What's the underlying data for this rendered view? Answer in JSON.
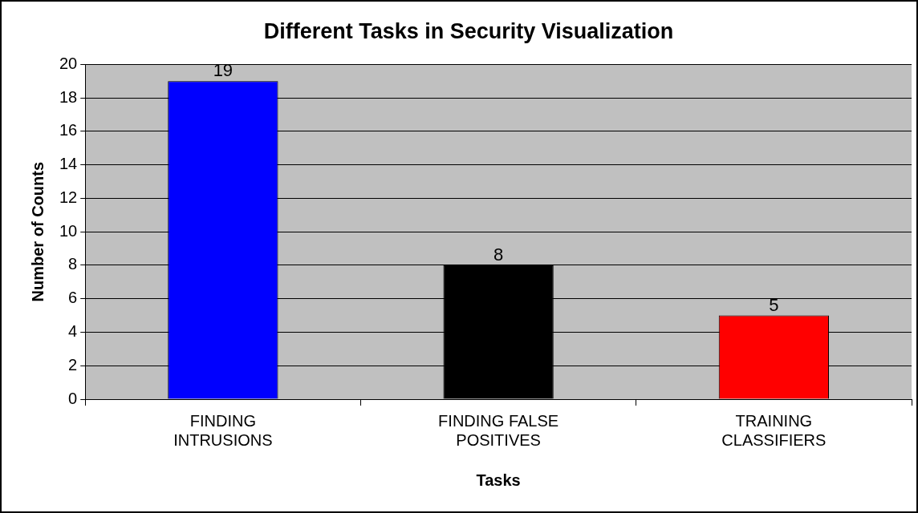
{
  "chart_data": {
    "type": "bar",
    "title": "Different Tasks in Security Visualization",
    "xlabel": "Tasks",
    "ylabel": "Number of Counts",
    "categories": [
      "FINDING INTRUSIONS",
      "FINDING FALSE POSITIVES",
      "TRAINING CLASSIFIERS"
    ],
    "values": [
      19,
      8,
      5
    ],
    "colors": [
      "#0000ff",
      "#000000",
      "#ff0000"
    ],
    "ylim": [
      0,
      20
    ],
    "yticks": [
      0,
      2,
      4,
      6,
      8,
      10,
      12,
      14,
      16,
      18,
      20
    ],
    "grid": "y",
    "data_labels": true,
    "legend": false
  }
}
